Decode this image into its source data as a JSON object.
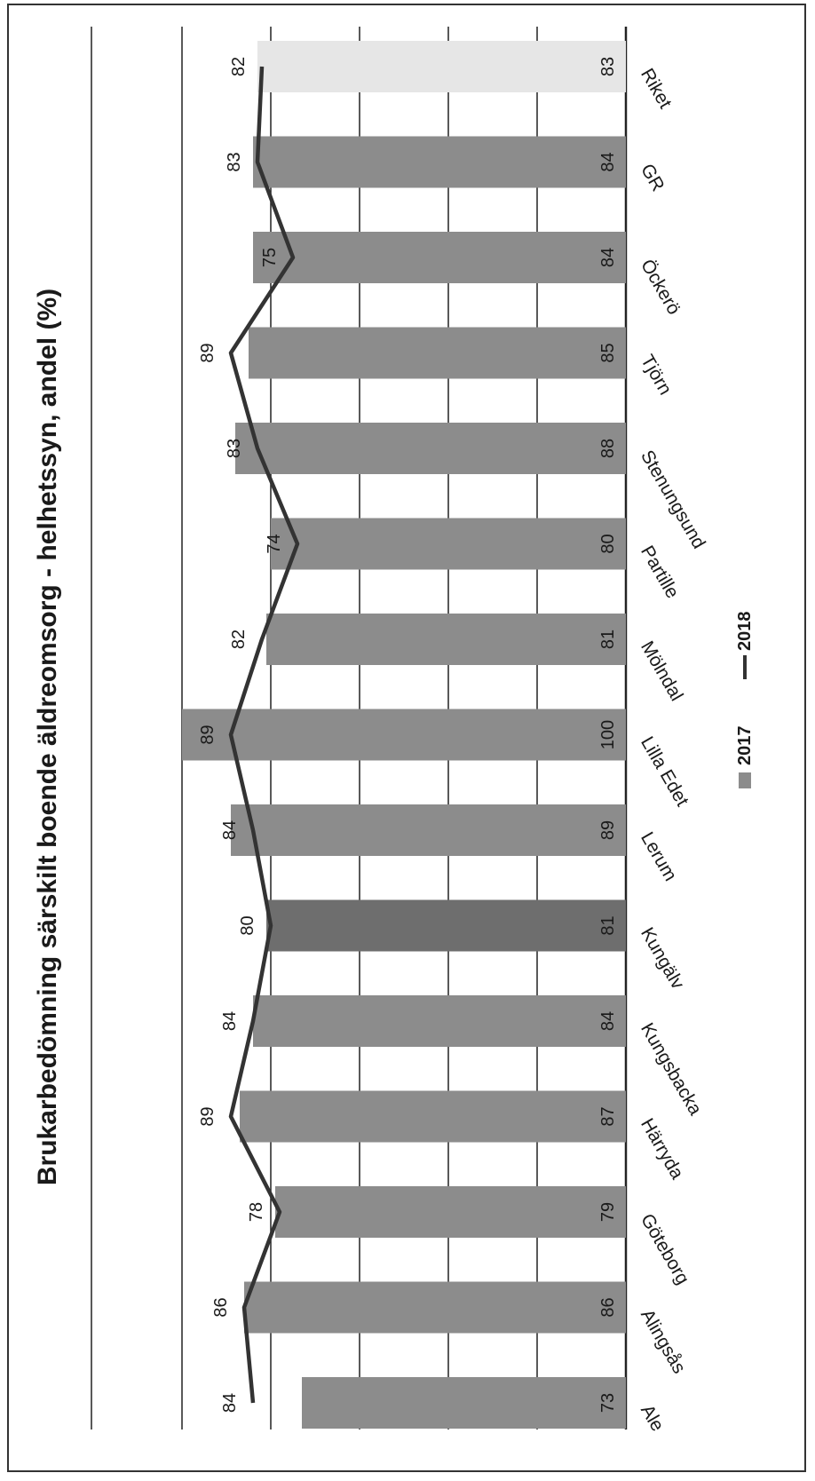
{
  "chart_data": {
    "type": "bar",
    "orientation": "rotated-90",
    "title": "Brukarbedömning särskilt boende äldreomsorg  -  helhetssyn, andel (%)",
    "categories": [
      "Ale",
      "Alingsås",
      "Göteborg",
      "Härryda",
      "Kungsbacka",
      "Kungälv",
      "Lerum",
      "Lilla Edet",
      "Mölndal",
      "Partille",
      "Stenungsund",
      "Tjörn",
      "Öckerö",
      "GR",
      "Riket"
    ],
    "series": [
      {
        "name": "2017",
        "mark": "bar",
        "values": [
          73,
          86,
          79,
          87,
          84,
          81,
          89,
          100,
          81,
          80,
          88,
          85,
          84,
          84,
          83
        ],
        "color": "#8c8c8c",
        "highlight_colors": {
          "Kungälv": "#6e6e6e",
          "Riket": "#e6e6e6"
        }
      },
      {
        "name": "2018",
        "mark": "line",
        "values": [
          84,
          86,
          78,
          89,
          84,
          80,
          84,
          89,
          82,
          74,
          83,
          89,
          75,
          83,
          82
        ],
        "color": "#333333"
      }
    ],
    "ylim": [
      0,
      100
    ],
    "grid": true,
    "legend": "bottom"
  }
}
